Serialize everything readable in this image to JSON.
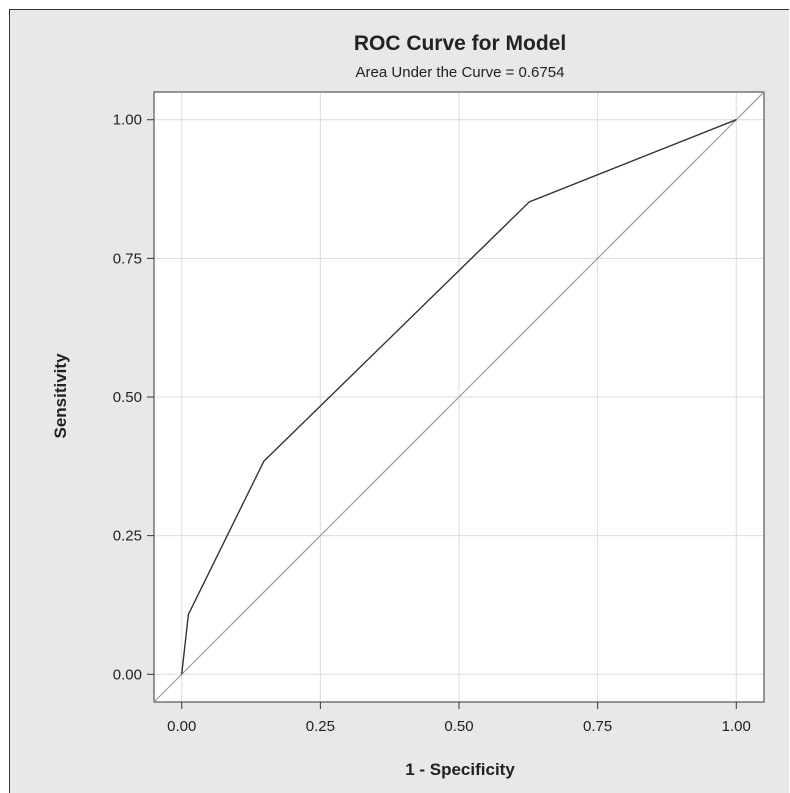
{
  "chart_data": {
    "type": "line",
    "title": "ROC Curve for Model",
    "subtitle": "Area Under the Curve = 0.6754",
    "xlabel": "1 - Specificity",
    "ylabel": "Sensitivity",
    "xlim": [
      -0.05,
      1.05
    ],
    "ylim": [
      -0.05,
      1.05
    ],
    "xticks": [
      "0.00",
      "0.25",
      "0.50",
      "0.75",
      "1.00"
    ],
    "yticks": [
      "0.00",
      "0.25",
      "0.50",
      "0.75",
      "1.00"
    ],
    "grid": true,
    "series": [
      {
        "x": [
          0.0,
          0.012,
          0.148,
          0.627,
          1.0
        ],
        "y": [
          0.0,
          0.108,
          0.384,
          0.852,
          1.0
        ],
        "color": "#333333"
      },
      {
        "x": [
          -0.05,
          1.05
        ],
        "y": [
          -0.05,
          1.05
        ],
        "color": "#9a9a9a"
      }
    ],
    "colors": {
      "background": "#e8e8e8",
      "plot_background": "#ffffff",
      "grid": "#dcdcdc"
    }
  }
}
